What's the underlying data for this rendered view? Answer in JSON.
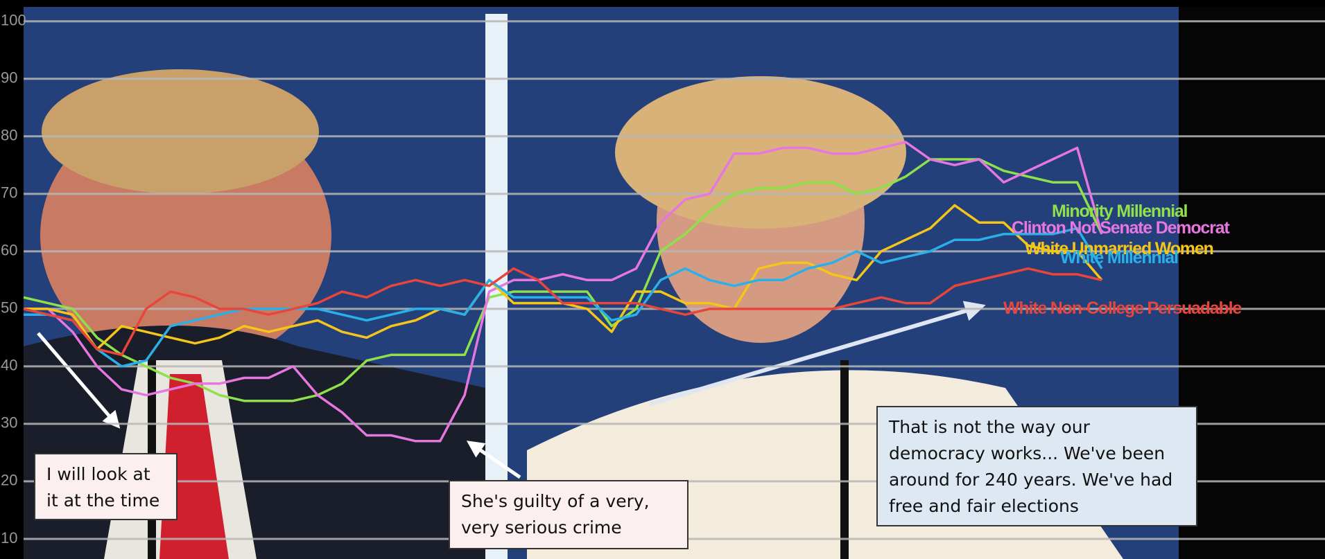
{
  "chart_data": {
    "type": "line",
    "ylim": [
      6.5,
      102.5
    ],
    "yticks": [
      10,
      20,
      30,
      40,
      50,
      60,
      70,
      80,
      90,
      100
    ],
    "grid": true,
    "series": [
      {
        "name": "Minority Millennial",
        "color": "#8fe04a",
        "values": [
          52,
          51,
          50,
          45,
          42,
          40,
          38,
          37,
          35,
          34,
          34,
          34,
          35,
          37,
          41,
          42,
          42,
          42,
          42,
          52,
          53,
          53,
          53,
          53,
          47,
          50,
          60,
          63,
          67,
          70,
          71,
          71,
          72,
          72,
          70,
          71,
          73,
          76,
          76,
          76,
          74,
          73,
          72,
          72,
          63
        ]
      },
      {
        "name": "Clinton Not Senate Democrat",
        "color": "#e676e0",
        "values": [
          50,
          50,
          46,
          40,
          36,
          35,
          36,
          37,
          37,
          38,
          38,
          40,
          35,
          32,
          28,
          28,
          27,
          27,
          35,
          53,
          55,
          55,
          56,
          55,
          55,
          57,
          65,
          69,
          70,
          77,
          77,
          78,
          78,
          77,
          77,
          78,
          79,
          76,
          75,
          76,
          72,
          74,
          76,
          78,
          63
        ]
      },
      {
        "name": "White Unmarried Women",
        "color": "#f5c518",
        "values": [
          50,
          50,
          49,
          43,
          47,
          46,
          45,
          44,
          45,
          47,
          46,
          47,
          48,
          46,
          45,
          47,
          48,
          50,
          49,
          55,
          51,
          51,
          51,
          50,
          46,
          53,
          53,
          51,
          51,
          50,
          57,
          58,
          58,
          56,
          55,
          60,
          62,
          64,
          68,
          65,
          65,
          61,
          60,
          60,
          55
        ]
      },
      {
        "name": "White Millennial",
        "color": "#2ab0e8",
        "values": [
          49,
          49,
          48,
          43,
          40,
          41,
          47,
          48,
          49,
          50,
          50,
          50,
          50,
          49,
          48,
          49,
          50,
          50,
          49,
          55,
          52,
          52,
          52,
          52,
          48,
          49,
          55,
          57,
          55,
          54,
          55,
          55,
          57,
          58,
          60,
          58,
          59,
          60,
          62,
          62,
          63,
          63,
          63,
          64,
          57
        ]
      },
      {
        "name": "White Non-College Persuadable",
        "color": "#e8453c",
        "values": [
          50,
          49,
          48,
          43,
          42,
          50,
          53,
          52,
          50,
          50,
          49,
          50,
          51,
          53,
          52,
          54,
          55,
          54,
          55,
          54,
          57,
          55,
          51,
          51,
          51,
          51,
          50,
          49,
          50,
          50,
          50,
          50,
          50,
          50,
          51,
          52,
          51,
          51,
          54,
          55,
          56,
          57,
          56,
          56,
          55
        ]
      }
    ],
    "annotations": [
      "I will look at it at the time",
      "She's guilty of a very, very serious crime",
      "That is not the way our democracy works... We've been around for 240 years. We've had free and fair elections"
    ]
  }
}
